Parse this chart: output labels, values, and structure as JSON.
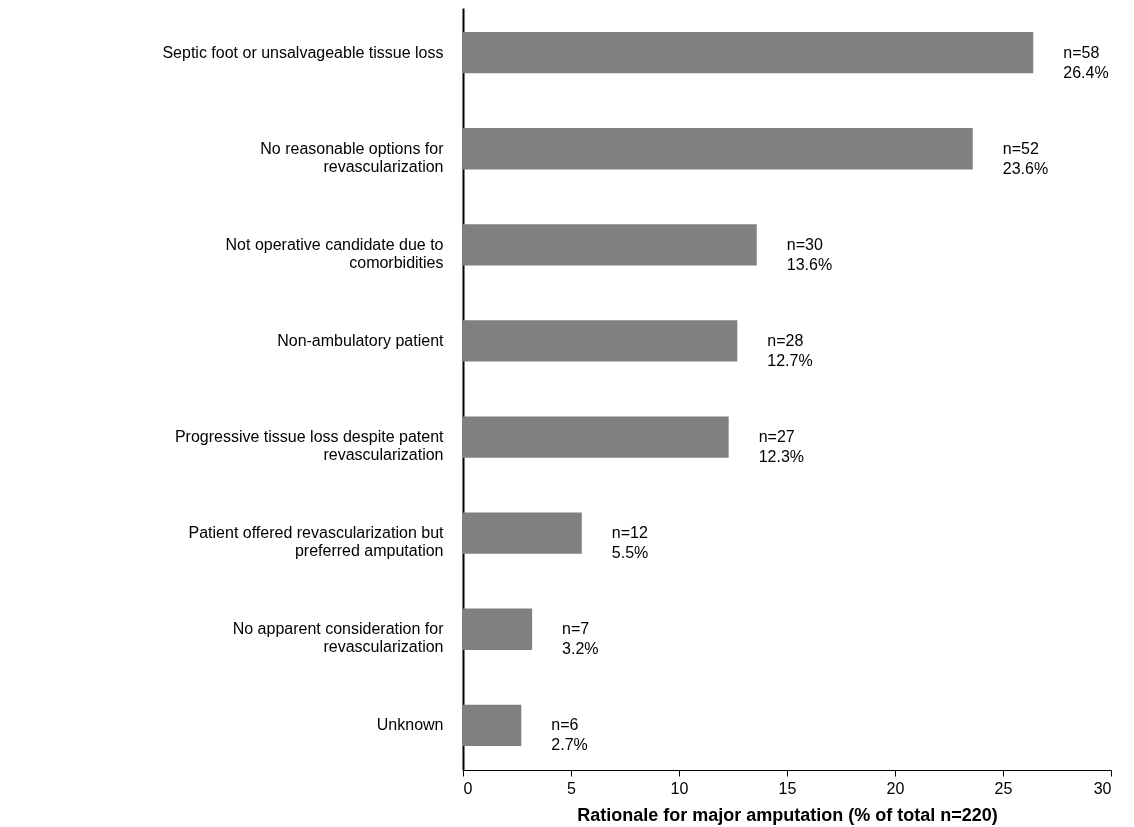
{
  "chart_data": {
    "type": "bar",
    "orientation": "horizontal",
    "xlabel": "Rationale for major amputation (% of total n=220)",
    "categories": [
      "Septic foot or unsalvageable tissue loss",
      "No reasonable options for\nrevascularization",
      "Not operative candidate due to\ncomorbidities",
      "Non-ambulatory patient",
      "Progressive tissue loss despite patent\nrevascularization",
      "Patient offered revascularization but\npreferred amputation",
      "No apparent consideration for\nrevascularization",
      "Unknown"
    ],
    "values": [
      26.4,
      23.6,
      13.6,
      12.7,
      12.3,
      5.5,
      3.2,
      2.7
    ],
    "value_labels": [
      "n=58\n26.4%",
      "n=52\n23.6%",
      "n=30\n13.6%",
      "n=28\n12.7%",
      "n=27\n12.3%",
      "n=12\n5.5%",
      "n=7\n3.2%",
      "n=6\n2.7%"
    ],
    "color": "#808080",
    "xlim": [
      0,
      30
    ],
    "xticks": [
      0,
      5,
      10,
      15,
      20,
      25,
      30
    ]
  }
}
